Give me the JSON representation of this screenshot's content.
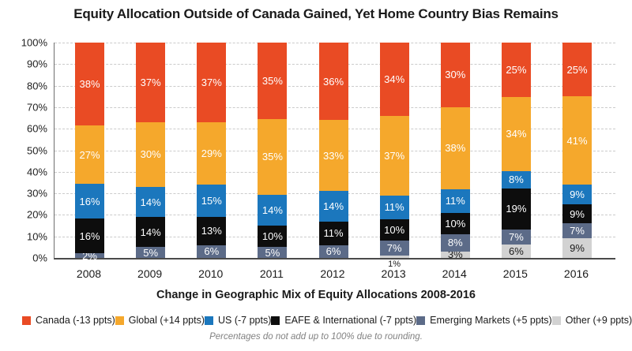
{
  "title": "Equity Allocation Outside of Canada Gained, Yet Home Country Bias Remains",
  "subtitle": "Change in Geographic Mix of Equity Allocations 2008-2016",
  "footnote": "Percentages do not add up to 100% due to rounding.",
  "chart_data": {
    "type": "bar",
    "stacked": true,
    "grid": "horizontal-dashed",
    "legend_position": "bottom",
    "ylim": [
      0,
      100
    ],
    "xlabel": "",
    "ylabel": "",
    "y_ticks": [
      "100%",
      "90%",
      "80%",
      "70%",
      "60%",
      "50%",
      "40%",
      "30%",
      "20%",
      "10%",
      "0%"
    ],
    "categories": [
      "2008",
      "2009",
      "2010",
      "2011",
      "2012",
      "2013",
      "2014",
      "2015",
      "2016"
    ],
    "series": [
      {
        "name": "Canada",
        "legend": "Canada (-13 ppts)",
        "color": "#E94B24",
        "label_color": "#FFFFFF",
        "values": [
          38,
          37,
          37,
          35,
          36,
          34,
          30,
          25,
          25
        ]
      },
      {
        "name": "Global",
        "legend": "Global (+14 ppts)",
        "color": "#F5A82C",
        "label_color": "#FFFFFF",
        "values": [
          27,
          30,
          29,
          35,
          33,
          37,
          38,
          34,
          41
        ]
      },
      {
        "name": "US",
        "legend": "US (-7 ppts)",
        "color": "#1B77BD",
        "label_color": "#FFFFFF",
        "values": [
          16,
          14,
          15,
          14,
          14,
          11,
          11,
          8,
          9
        ]
      },
      {
        "name": "EAFE & International",
        "legend": "EAFE & International (-7 ppts)",
        "color": "#0D0D0D",
        "label_color": "#FFFFFF",
        "values": [
          16,
          14,
          13,
          10,
          11,
          10,
          10,
          19,
          9
        ]
      },
      {
        "name": "Emerging Markets",
        "legend": "Emerging Markets (+5 ppts)",
        "color": "#5C6B88",
        "label_color": "#FFFFFF",
        "values": [
          2,
          5,
          6,
          5,
          6,
          7,
          8,
          7,
          7
        ]
      },
      {
        "name": "Other",
        "legend": "Other (+9 ppts)",
        "color": "#D2D2D2",
        "label_color": "#1A1A1A",
        "values": [
          0,
          0,
          0,
          0,
          0,
          1,
          3,
          6,
          9
        ]
      }
    ],
    "below_axis_label": {
      "category": "2013",
      "series": "Other",
      "text": "1%"
    }
  }
}
